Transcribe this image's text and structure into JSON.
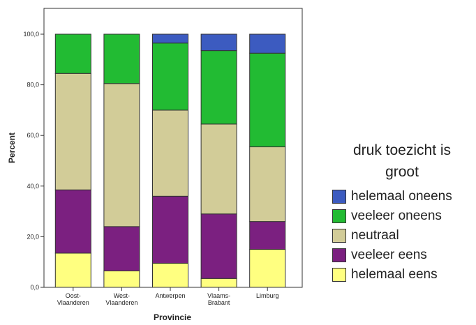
{
  "chart_data": {
    "type": "bar",
    "stacked": true,
    "ylabel": "Percent",
    "xlabel": "Provincie",
    "ylim": [
      0,
      100
    ],
    "yticks": [
      "0,0",
      "20,0",
      "40,0",
      "60,0",
      "80,0",
      "100,0"
    ],
    "categories": [
      [
        "Oost-",
        "Vlaanderen"
      ],
      [
        "West-",
        "Vlaanderen"
      ],
      [
        "Antwerpen"
      ],
      [
        "Vlaams-",
        "Brabant"
      ],
      [
        "Limburg"
      ]
    ],
    "legend_title": [
      "druk toezicht is",
      "groot"
    ],
    "legend_position": "right",
    "series": [
      {
        "name": "helemaal eens",
        "color": "#ffff80",
        "values": [
          13.5,
          6.5,
          9.5,
          3.5,
          15.0
        ]
      },
      {
        "name": "veeleer eens",
        "color": "#7b2080",
        "values": [
          25.0,
          17.5,
          26.5,
          25.5,
          11.0
        ]
      },
      {
        "name": "neutraal",
        "color": "#d2cc98",
        "values": [
          46.0,
          56.5,
          34.0,
          35.5,
          29.5
        ]
      },
      {
        "name": "veeleer oneens",
        "color": "#22bb33",
        "values": [
          15.5,
          19.5,
          26.5,
          29.0,
          37.0
        ]
      },
      {
        "name": "helemaal oneens",
        "color": "#3c5bc0",
        "values": [
          0.0,
          0.0,
          3.5,
          6.5,
          7.5
        ]
      }
    ],
    "legend_order": [
      "helemaal oneens",
      "veeleer oneens",
      "neutraal",
      "veeleer eens",
      "helemaal eens"
    ]
  }
}
